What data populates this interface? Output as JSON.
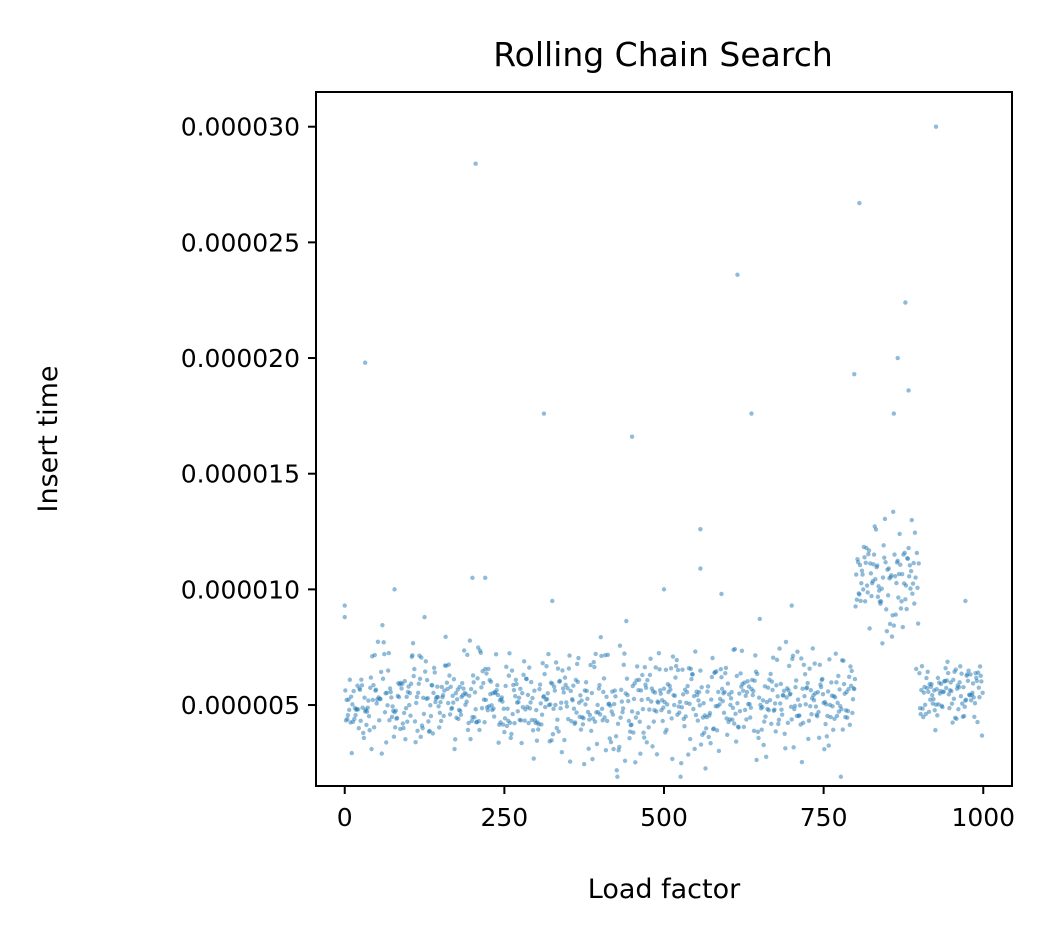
{
  "chart_data": {
    "type": "scatter",
    "title": "Rolling Chain Search",
    "xlabel": "Load factor",
    "ylabel": "Insert time",
    "xlim": [
      -45,
      1045
    ],
    "ylim": [
      1.5e-06,
      3.15e-05
    ],
    "xticks": [
      0,
      250,
      500,
      750,
      1000
    ],
    "xtick_labels": [
      "0",
      "250",
      "500",
      "750",
      "1000"
    ],
    "yticks": [
      5e-06,
      1e-05,
      1.5e-05,
      2e-05,
      2.5e-05,
      3e-05
    ],
    "ytick_labels": [
      "0.000005",
      "0.000010",
      "0.000015",
      "0.000020",
      "0.000025",
      "0.000030"
    ],
    "grid": false,
    "color": "#1f77b4",
    "n_points": 1000,
    "outliers": [
      {
        "x": 32,
        "y": 1.98e-05
      },
      {
        "x": 205,
        "y": 2.84e-05
      },
      {
        "x": 312,
        "y": 1.76e-05
      },
      {
        "x": 450,
        "y": 1.66e-05
      },
      {
        "x": 557,
        "y": 1.26e-05
      },
      {
        "x": 557,
        "y": 1.09e-05
      },
      {
        "x": 615,
        "y": 2.36e-05
      },
      {
        "x": 637,
        "y": 1.76e-05
      },
      {
        "x": 798,
        "y": 1.93e-05
      },
      {
        "x": 806,
        "y": 2.67e-05
      },
      {
        "x": 860,
        "y": 1.76e-05
      },
      {
        "x": 866,
        "y": 2e-05
      },
      {
        "x": 878,
        "y": 2.24e-05
      },
      {
        "x": 883,
        "y": 1.86e-05
      },
      {
        "x": 926,
        "y": 3e-05
      },
      {
        "x": 0,
        "y": 9.3e-06
      },
      {
        "x": 78,
        "y": 1e-05
      },
      {
        "x": 200,
        "y": 1.05e-05
      },
      {
        "x": 220,
        "y": 1.05e-05
      },
      {
        "x": 325,
        "y": 9.5e-06
      },
      {
        "x": 500,
        "y": 1e-05
      },
      {
        "x": 590,
        "y": 9.8e-06
      },
      {
        "x": 700,
        "y": 9.3e-06
      },
      {
        "x": 972,
        "y": 9.5e-06
      }
    ],
    "segments": [
      {
        "x_start": 0,
        "x_end": 800,
        "y_center": 5.2e-06,
        "y_spread": 1.8e-06,
        "y_min": 1.9e-06,
        "y_max": 8.8e-06
      },
      {
        "x_start": 800,
        "x_end": 900,
        "y_center": 1.05e-05,
        "y_spread": 2e-06,
        "y_min": 5.2e-06,
        "y_max": 1.52e-05
      },
      {
        "x_start": 900,
        "x_end": 1000,
        "y_center": 5.5e-06,
        "y_spread": 1.2e-06,
        "y_min": 2.5e-06,
        "y_max": 8.2e-06
      }
    ]
  }
}
